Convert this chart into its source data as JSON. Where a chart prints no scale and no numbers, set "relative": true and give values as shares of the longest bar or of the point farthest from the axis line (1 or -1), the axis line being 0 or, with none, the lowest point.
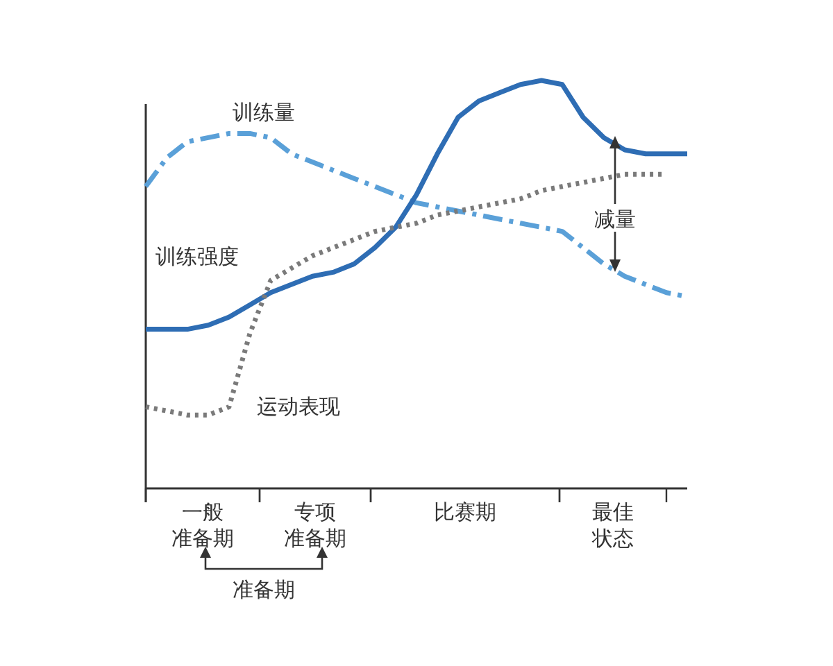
{
  "chart_data": {
    "type": "line",
    "relative": true,
    "categories": [
      null,
      null,
      null,
      null,
      null,
      null,
      null,
      null,
      null,
      null,
      null,
      null,
      null,
      null,
      null,
      null,
      null,
      null,
      null,
      null,
      null,
      null,
      null,
      null,
      null,
      null,
      null
    ],
    "series": [
      {
        "name": "训练量",
        "color": "#5aa0d8",
        "line_style": "dashdot",
        "values": [
          0.74,
          0.81,
          0.85,
          0.86,
          0.87,
          0.87,
          0.86,
          0.82,
          0.8,
          0.78,
          0.76,
          0.74,
          0.72,
          0.7,
          0.69,
          0.68,
          0.67,
          0.66,
          0.65,
          0.64,
          0.63,
          0.59,
          0.55,
          0.52,
          0.5,
          0.48,
          0.47
        ]
      },
      {
        "name": "训练强度",
        "color": "#2e6db4",
        "line_style": "solid",
        "values": [
          0.39,
          0.39,
          0.39,
          0.4,
          0.42,
          0.45,
          0.48,
          0.5,
          0.52,
          0.53,
          0.55,
          0.59,
          0.64,
          0.72,
          0.82,
          0.91,
          0.95,
          0.97,
          0.99,
          1,
          0.99,
          0.91,
          0.86,
          0.83,
          0.82,
          0.82,
          0.82
        ]
      },
      {
        "name": "运动表现",
        "color": "#7a7a7a",
        "line_style": "dotted",
        "values": [
          0.2,
          0.19,
          0.18,
          0.18,
          0.2,
          0.38,
          0.51,
          0.54,
          0.57,
          0.59,
          0.61,
          0.63,
          0.64,
          0.65,
          0.67,
          0.68,
          0.69,
          0.7,
          0.71,
          0.73,
          0.74,
          0.75,
          0.76,
          0.77,
          0.77,
          0.77,
          null
        ]
      }
    ],
    "annotations": [
      "一般准备期",
      "专项准备期",
      "比赛期",
      "最佳状态",
      "准备期",
      "减量"
    ]
  }
}
